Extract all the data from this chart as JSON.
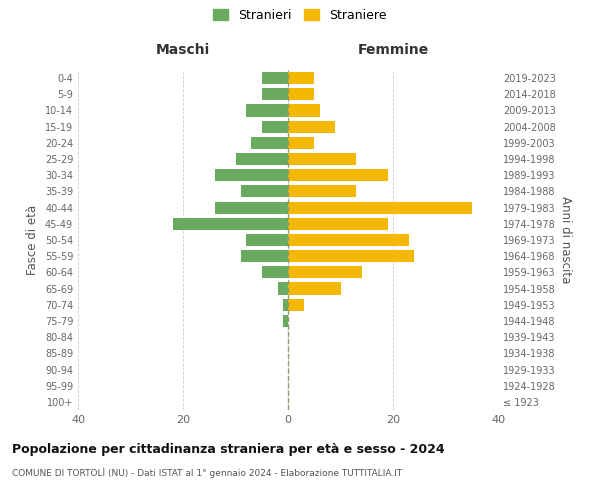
{
  "age_groups": [
    "100+",
    "95-99",
    "90-94",
    "85-89",
    "80-84",
    "75-79",
    "70-74",
    "65-69",
    "60-64",
    "55-59",
    "50-54",
    "45-49",
    "40-44",
    "35-39",
    "30-34",
    "25-29",
    "20-24",
    "15-19",
    "10-14",
    "5-9",
    "0-4"
  ],
  "birth_years": [
    "≤ 1923",
    "1924-1928",
    "1929-1933",
    "1934-1938",
    "1939-1943",
    "1944-1948",
    "1949-1953",
    "1954-1958",
    "1959-1963",
    "1964-1968",
    "1969-1973",
    "1974-1978",
    "1979-1983",
    "1984-1988",
    "1989-1993",
    "1994-1998",
    "1999-2003",
    "2004-2008",
    "2009-2013",
    "2014-2018",
    "2019-2023"
  ],
  "males": [
    0,
    0,
    0,
    0,
    0,
    1,
    1,
    2,
    5,
    9,
    8,
    22,
    14,
    9,
    14,
    10,
    7,
    5,
    8,
    5,
    5
  ],
  "females": [
    0,
    0,
    0,
    0,
    0,
    0,
    3,
    10,
    14,
    24,
    23,
    19,
    35,
    13,
    19,
    13,
    5,
    9,
    6,
    5,
    5
  ],
  "male_color": "#6aaa5e",
  "female_color": "#f5b800",
  "title_main": "Popolazione per cittadinanza straniera per età e sesso - 2024",
  "subtitle": "COMUNE DI TORTOLÌ (NU) - Dati ISTAT al 1° gennaio 2024 - Elaborazione TUTTITALIA.IT",
  "xlabel_left": "Maschi",
  "xlabel_right": "Femmine",
  "ylabel_left": "Fasce di età",
  "ylabel_right": "Anni di nascita",
  "legend_males": "Stranieri",
  "legend_females": "Straniere",
  "xlim": 40,
  "background_color": "#ffffff",
  "grid_color": "#cccccc"
}
